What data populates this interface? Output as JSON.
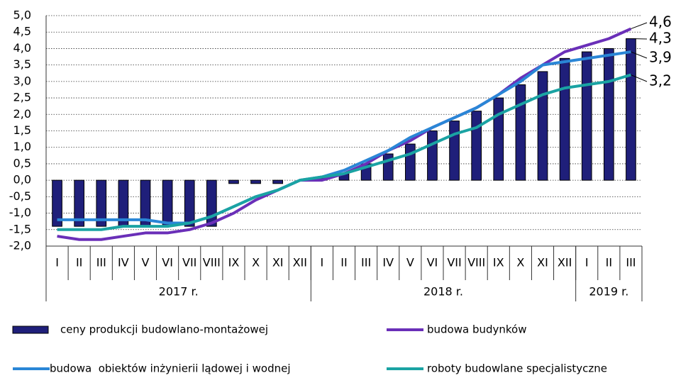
{
  "chart_data": {
    "type": "bar_line",
    "groups": [
      {
        "label": "2017 r.",
        "categories": [
          "I",
          "II",
          "III",
          "IV",
          "V",
          "VI",
          "VII",
          "VIII",
          "IX",
          "X",
          "XI",
          "XII"
        ]
      },
      {
        "label": "2018 r.",
        "categories": [
          "I",
          "II",
          "III",
          "IV",
          "V",
          "VI",
          "VII",
          "VIII",
          "IX",
          "X",
          "XI",
          "XII"
        ]
      },
      {
        "label": "2019 r.",
        "categories": [
          "I",
          "II",
          "III"
        ]
      }
    ],
    "ylim": [
      -2,
      5
    ],
    "yticks": [
      {
        "value": -2,
        "label": "-2,0"
      },
      {
        "value": -1.5,
        "label": "-1,5"
      },
      {
        "value": -1,
        "label": "-1,0"
      },
      {
        "value": -0.5,
        "label": "-0,5"
      },
      {
        "value": 0,
        "label": "0,0"
      },
      {
        "value": 0.5,
        "label": "0,5"
      },
      {
        "value": 1,
        "label": "1,0"
      },
      {
        "value": 1.5,
        "label": "1,5"
      },
      {
        "value": 2,
        "label": "2,0"
      },
      {
        "value": 2.5,
        "label": "2,5"
      },
      {
        "value": 3,
        "label": "3,0"
      },
      {
        "value": 3.5,
        "label": "3,5"
      },
      {
        "value": 4,
        "label": "4,0"
      },
      {
        "value": 4.5,
        "label": "4,5"
      },
      {
        "value": 5,
        "label": "5,0"
      }
    ],
    "grid": true,
    "series": [
      {
        "name": "ceny produkcji budowlano-montażowej",
        "type": "bar",
        "color": "#1f1f7a",
        "values": [
          -1.4,
          -1.4,
          -1.4,
          -1.4,
          -1.4,
          -1.4,
          -1.4,
          -1.4,
          -0.1,
          -0.1,
          -0.1,
          0.0,
          0.1,
          0.2,
          0.5,
          0.8,
          1.1,
          1.5,
          1.8,
          2.1,
          2.5,
          2.9,
          3.3,
          3.7,
          3.9,
          4.0,
          4.3
        ],
        "value_labels": [
          null,
          null,
          null,
          null,
          null,
          null,
          null,
          null,
          null,
          null,
          null,
          null,
          null,
          null,
          null,
          null,
          null,
          null,
          null,
          null,
          null,
          null,
          null,
          null,
          null,
          null,
          "4,3"
        ]
      },
      {
        "name": "budowa budynków",
        "type": "line",
        "color": "#6a2fb8",
        "values": [
          -1.7,
          -1.8,
          -1.8,
          -1.7,
          -1.6,
          -1.6,
          -1.5,
          -1.3,
          -1.0,
          -0.6,
          -0.3,
          0.0,
          0.0,
          0.2,
          0.5,
          0.9,
          1.2,
          1.6,
          1.9,
          2.2,
          2.6,
          3.1,
          3.5,
          3.9,
          4.1,
          4.3,
          4.6
        ],
        "value_labels": [
          null,
          null,
          null,
          null,
          null,
          null,
          null,
          null,
          null,
          null,
          null,
          null,
          null,
          null,
          null,
          null,
          null,
          null,
          null,
          null,
          null,
          null,
          null,
          null,
          null,
          null,
          "4,6"
        ]
      },
      {
        "name": "budowa  obiektów inżynierii lądowej i wodnej",
        "type": "line",
        "color": "#2a86d6",
        "values": [
          -1.2,
          -1.2,
          -1.2,
          -1.2,
          -1.2,
          -1.3,
          -1.3,
          -1.1,
          -0.8,
          -0.5,
          -0.3,
          0.0,
          0.1,
          0.3,
          0.6,
          0.9,
          1.3,
          1.6,
          1.9,
          2.2,
          2.6,
          3.0,
          3.5,
          3.6,
          3.7,
          3.8,
          3.9
        ],
        "value_labels": [
          null,
          null,
          null,
          null,
          null,
          null,
          null,
          null,
          null,
          null,
          null,
          null,
          null,
          null,
          null,
          null,
          null,
          null,
          null,
          null,
          null,
          null,
          null,
          null,
          null,
          null,
          "3,9"
        ]
      },
      {
        "name": "roboty budowlane specjalistyczne",
        "type": "line",
        "color": "#1aa3a3",
        "values": [
          -1.5,
          -1.5,
          -1.5,
          -1.4,
          -1.4,
          -1.4,
          -1.3,
          -1.1,
          -0.8,
          -0.5,
          -0.3,
          0.0,
          0.1,
          0.2,
          0.4,
          0.6,
          0.8,
          1.1,
          1.4,
          1.6,
          2.0,
          2.3,
          2.6,
          2.8,
          2.9,
          3.0,
          3.2
        ],
        "value_labels": [
          null,
          null,
          null,
          null,
          null,
          null,
          null,
          null,
          null,
          null,
          null,
          null,
          null,
          null,
          null,
          null,
          null,
          null,
          null,
          null,
          null,
          null,
          null,
          null,
          null,
          null,
          "3,2"
        ]
      }
    ]
  }
}
